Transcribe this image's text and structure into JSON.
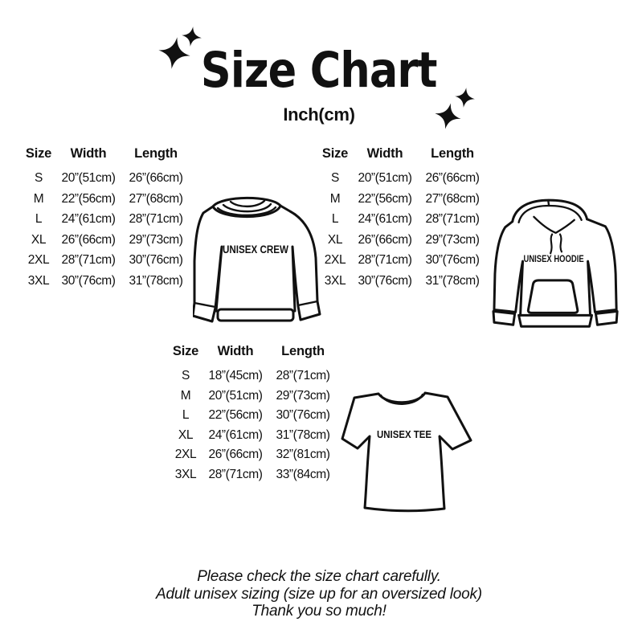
{
  "page": {
    "background": "#ffffff",
    "ink": "#111111"
  },
  "header": {
    "title": "Size Chart",
    "subtitle": "Inch(cm)",
    "sparkle_icon": "four-point-sparkle"
  },
  "crew": {
    "label": "UNISEX CREW",
    "table": {
      "headers": [
        "Size",
        "Width",
        "Length"
      ],
      "rows": [
        [
          "S",
          "20”(51cm)",
          "26”(66cm)"
        ],
        [
          "M",
          "22”(56cm)",
          "27”(68cm)"
        ],
        [
          "L",
          "24”(61cm)",
          "28”(71cm)"
        ],
        [
          "XL",
          "26”(66cm)",
          "29”(73cm)"
        ],
        [
          "2XL",
          "28”(71cm)",
          "30”(76cm)"
        ],
        [
          "3XL",
          "30”(76cm)",
          "31”(78cm)"
        ]
      ]
    }
  },
  "hoodie": {
    "label": "UNISEX HOODIE",
    "table": {
      "headers": [
        "Size",
        "Width",
        "Length"
      ],
      "rows": [
        [
          "S",
          "20”(51cm)",
          "26”(66cm)"
        ],
        [
          "M",
          "22”(56cm)",
          "27”(68cm)"
        ],
        [
          "L",
          "24”(61cm)",
          "28”(71cm)"
        ],
        [
          "XL",
          "26”(66cm)",
          "29”(73cm)"
        ],
        [
          "2XL",
          "28”(71cm)",
          "30”(76cm)"
        ],
        [
          "3XL",
          "30”(76cm)",
          "31”(78cm)"
        ]
      ]
    }
  },
  "tee": {
    "label": "UNISEX TEE",
    "table": {
      "headers": [
        "Size",
        "Width",
        "Length"
      ],
      "rows": [
        [
          "S",
          "18”(45cm)",
          "28”(71cm)"
        ],
        [
          "M",
          "20”(51cm)",
          "29”(73cm)"
        ],
        [
          "L",
          "22”(56cm)",
          "30”(76cm)"
        ],
        [
          "XL",
          "24”(61cm)",
          "31”(78cm)"
        ],
        [
          "2XL",
          "26”(66cm)",
          "32”(81cm)"
        ],
        [
          "3XL",
          "28”(71cm)",
          "33”(84cm)"
        ]
      ]
    }
  },
  "footer": {
    "lines": [
      "Please check the size chart carefully.",
      "Adult unisex sizing (size up for an oversized look)",
      "Thank you so much!"
    ]
  }
}
